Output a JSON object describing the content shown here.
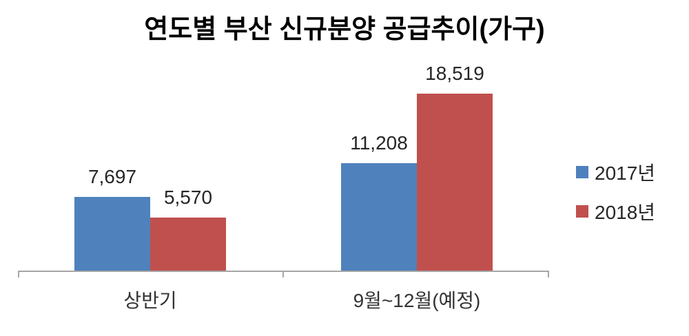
{
  "chart_data": {
    "type": "bar",
    "title": "연도별 부산 신규분양 공급추이(가구)",
    "categories": [
      "상반기",
      "9월~12월(예정)"
    ],
    "series": [
      {
        "name": "2017년",
        "color": "#4F81BD",
        "values": [
          7697,
          11208
        ],
        "labels": [
          "7,697",
          "11,208"
        ]
      },
      {
        "name": "2018년",
        "color": "#C0504D",
        "values": [
          5570,
          18519
        ],
        "labels": [
          "5,570",
          "18,519"
        ]
      }
    ],
    "xlabel": "",
    "ylabel": "",
    "ylim": [
      0,
      20000
    ],
    "grid": false,
    "legend_position": "right",
    "axis_color": "#A6A6A6",
    "value_label_position": "outside-end"
  }
}
